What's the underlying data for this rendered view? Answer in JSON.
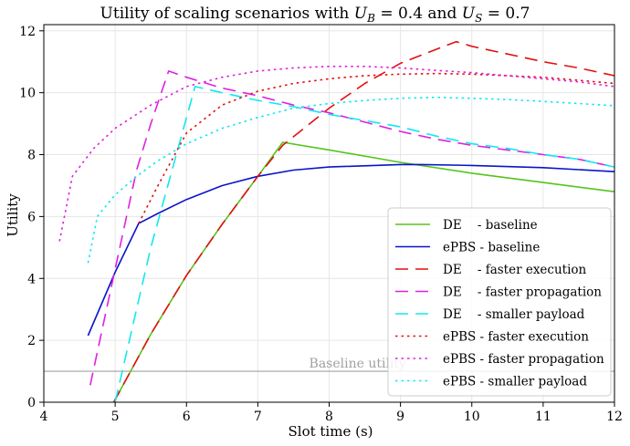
{
  "chart_data": {
    "type": "line",
    "title": "Utility of scaling scenarios with U_B = 0.4 and U_S = 0.7",
    "title_parts": {
      "prefix": "Utility of scaling scenarios with ",
      "ub_sym": "U",
      "ub_sub": "B",
      "ub_val": " = 0.4 and ",
      "us_sym": "U",
      "us_sub": "S",
      "us_val": " = 0.7"
    },
    "xlabel": "Slot time (s)",
    "ylabel": "Utility",
    "xlim": [
      4,
      12
    ],
    "ylim": [
      0,
      12.2
    ],
    "xticks": [
      "4",
      "5",
      "6",
      "7",
      "8",
      "9",
      "10",
      "11",
      "12"
    ],
    "yticks": [
      "0",
      "2",
      "4",
      "6",
      "8",
      "10",
      "12"
    ],
    "grid": true,
    "legend_position": "bottom-right",
    "annotation": {
      "text": "Baseline utility",
      "y": 1.0
    },
    "series": [
      {
        "name": "DE    - baseline",
        "color": "#55c41b",
        "dash": "solid",
        "x": [
          4.98,
          5.5,
          6.0,
          6.5,
          7.0,
          7.35,
          8,
          9,
          10,
          11,
          12
        ],
        "y": [
          0.0,
          2.2,
          4.1,
          5.75,
          7.3,
          8.4,
          8.15,
          7.75,
          7.4,
          7.1,
          6.8
        ]
      },
      {
        "name": "ePBS - baseline",
        "color": "#0a14c8",
        "dash": "solid",
        "x": [
          4.62,
          5.0,
          5.33,
          5.6,
          6.0,
          6.5,
          7,
          7.5,
          8,
          9,
          9.3,
          10,
          11,
          12
        ],
        "y": [
          2.15,
          4.2,
          5.78,
          6.1,
          6.55,
          7.0,
          7.3,
          7.5,
          7.6,
          7.68,
          7.68,
          7.65,
          7.58,
          7.45
        ]
      },
      {
        "name": "DE    - faster execution",
        "color": "#e01010",
        "dash": "long",
        "x": [
          4.98,
          5.5,
          6.0,
          6.5,
          7.0,
          7.35,
          8,
          8.5,
          9,
          9.5,
          9.78,
          10,
          10.5,
          11,
          11.5,
          12
        ],
        "y": [
          0.0,
          2.2,
          4.1,
          5.75,
          7.3,
          8.3,
          9.5,
          10.3,
          10.95,
          11.4,
          11.65,
          11.5,
          11.25,
          11.0,
          10.8,
          10.55
        ]
      },
      {
        "name": "DE    - faster propagation",
        "color": "#e020e0",
        "dash": "long",
        "x": [
          4.65,
          5.0,
          5.3,
          5.5,
          5.75,
          6.0,
          6.5,
          7,
          7.5,
          8,
          8.5,
          9,
          9.5,
          10,
          10.5,
          11,
          11.5,
          12
        ],
        "y": [
          0.55,
          4.3,
          7.5,
          9.0,
          10.7,
          10.5,
          10.15,
          9.9,
          9.6,
          9.35,
          9.05,
          8.75,
          8.5,
          8.3,
          8.15,
          8.0,
          7.85,
          7.6
        ]
      },
      {
        "name": "DE    - smaller payload",
        "color": "#10e8f0",
        "dash": "long",
        "x": [
          5.0,
          5.5,
          6.0,
          6.12,
          6.5,
          7.0,
          7.5,
          8,
          8.5,
          9,
          9.5,
          10,
          10.5,
          11,
          11.5,
          12
        ],
        "y": [
          0.0,
          5.0,
          9.2,
          10.2,
          10.0,
          9.75,
          9.55,
          9.3,
          9.1,
          8.9,
          8.6,
          8.35,
          8.2,
          8.0,
          7.85,
          7.6
        ]
      },
      {
        "name": "ePBS - faster execution",
        "color": "#e01010",
        "dash": "dot",
        "x": [
          5.33,
          5.6,
          6.0,
          6.5,
          7.0,
          7.5,
          8.0,
          8.5,
          9,
          9.5,
          10,
          10.5,
          11,
          11.5,
          12
        ],
        "y": [
          5.78,
          7.0,
          8.7,
          9.6,
          10.05,
          10.3,
          10.45,
          10.55,
          10.6,
          10.62,
          10.6,
          10.55,
          10.5,
          10.4,
          10.3
        ]
      },
      {
        "name": "ePBS - faster propagation",
        "color": "#e020e0",
        "dash": "dot",
        "x": [
          4.22,
          4.4,
          4.7,
          5.0,
          5.5,
          6.0,
          6.5,
          7.0,
          7.5,
          8.0,
          8.5,
          9,
          9.5,
          10,
          10.5,
          11,
          11.5,
          12
        ],
        "y": [
          5.2,
          7.3,
          8.2,
          8.85,
          9.6,
          10.2,
          10.5,
          10.7,
          10.8,
          10.85,
          10.85,
          10.8,
          10.72,
          10.65,
          10.55,
          10.45,
          10.35,
          10.2
        ]
      },
      {
        "name": "ePBS - smaller payload",
        "color": "#10e8f0",
        "dash": "dot",
        "x": [
          4.62,
          4.75,
          5.0,
          5.33,
          5.6,
          6.0,
          6.5,
          7.0,
          7.5,
          8.0,
          8.5,
          9,
          9.5,
          10,
          10.5,
          11,
          11.5,
          12
        ],
        "y": [
          4.5,
          6.0,
          6.7,
          7.35,
          7.8,
          8.35,
          8.85,
          9.2,
          9.5,
          9.65,
          9.75,
          9.82,
          9.85,
          9.82,
          9.78,
          9.72,
          9.65,
          9.58
        ]
      }
    ]
  }
}
